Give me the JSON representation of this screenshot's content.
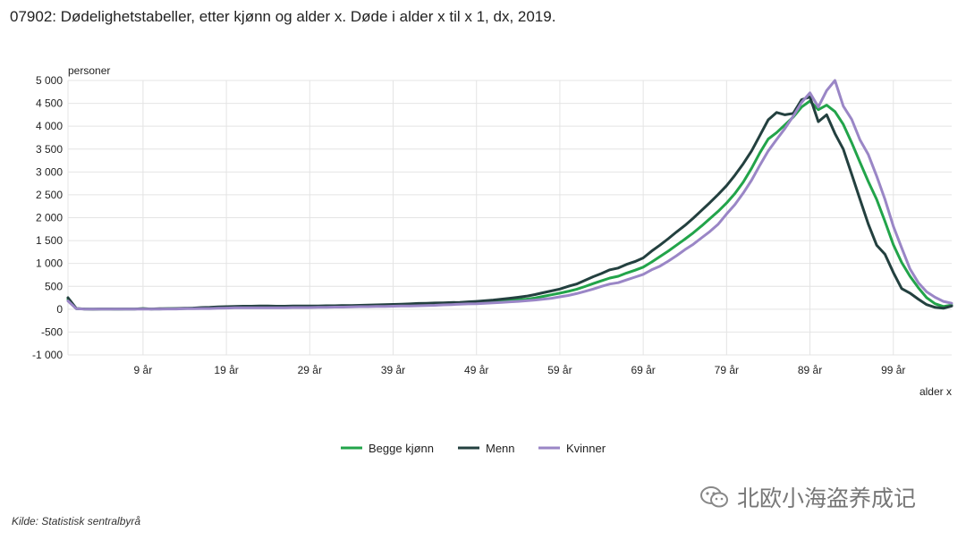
{
  "title": "07902: Dødelighetstabeller, etter kjønn og alder x. Døde i alder x til x 1, dx, 2019.",
  "source": "Kilde:  Statistisk sentralbyrå",
  "watermark": "北欧小海盗养成记",
  "watermark_icon": "wechat-icon",
  "chart_data": {
    "type": "line",
    "title": "07902: Dødelighetstabeller, etter kjønn og alder x. Døde i alder x til x 1, dx, 2019.",
    "xlabel": "alder x",
    "ylabel": "personer",
    "xlim": [
      0,
      106
    ],
    "ylim": [
      -1000,
      5000
    ],
    "y_ticks": [
      -1000,
      -500,
      0,
      500,
      1000,
      1500,
      2000,
      2500,
      3000,
      3500,
      4000,
      4500,
      5000
    ],
    "y_tick_labels": [
      "-1 000",
      "-500",
      "0",
      "500",
      "1 000",
      "1 500",
      "2 000",
      "2 500",
      "3 000",
      "3 500",
      "4 000",
      "4 500",
      "5 000"
    ],
    "x_ticks": [
      9,
      19,
      29,
      39,
      49,
      59,
      69,
      79,
      89,
      99
    ],
    "x_tick_labels": [
      "9 år",
      "19 år",
      "29 år",
      "39 år",
      "49 år",
      "59 år",
      "69 år",
      "79 år",
      "89 år",
      "99 år"
    ],
    "grid": true,
    "legend_position": "bottom-center",
    "x": [
      0,
      1,
      2,
      3,
      4,
      5,
      6,
      7,
      8,
      9,
      10,
      11,
      12,
      13,
      14,
      15,
      16,
      17,
      18,
      19,
      20,
      21,
      22,
      23,
      24,
      25,
      26,
      27,
      28,
      29,
      30,
      31,
      32,
      33,
      34,
      35,
      36,
      37,
      38,
      39,
      40,
      41,
      42,
      43,
      44,
      45,
      46,
      47,
      48,
      49,
      50,
      51,
      52,
      53,
      54,
      55,
      56,
      57,
      58,
      59,
      60,
      61,
      62,
      63,
      64,
      65,
      66,
      67,
      68,
      69,
      70,
      71,
      72,
      73,
      74,
      75,
      76,
      77,
      78,
      79,
      80,
      81,
      82,
      83,
      84,
      85,
      86,
      87,
      88,
      89,
      90,
      91,
      92,
      93,
      94,
      95,
      96,
      97,
      98,
      99,
      100,
      101,
      102,
      103,
      104,
      105,
      106
    ],
    "series": [
      {
        "name": "Begge kjønn",
        "color": "#22a44a",
        "values": [
          215,
          10,
          5,
          0,
          5,
          5,
          0,
          5,
          5,
          10,
          5,
          5,
          10,
          10,
          15,
          20,
          25,
          30,
          35,
          40,
          45,
          45,
          50,
          50,
          50,
          50,
          50,
          50,
          50,
          55,
          55,
          55,
          60,
          60,
          65,
          70,
          70,
          75,
          75,
          80,
          85,
          90,
          100,
          105,
          110,
          115,
          120,
          125,
          130,
          140,
          150,
          160,
          175,
          190,
          205,
          220,
          245,
          280,
          315,
          350,
          390,
          435,
          495,
          560,
          620,
          680,
          720,
          790,
          850,
          920,
          1030,
          1150,
          1270,
          1400,
          1530,
          1670,
          1820,
          1980,
          2140,
          2320,
          2530,
          2780,
          3080,
          3420,
          3720,
          3860,
          4030,
          4200,
          4420,
          4550,
          4360,
          4460,
          4320,
          4040,
          3640,
          3210,
          2790,
          2400,
          1920,
          1410,
          1020,
          720,
          470,
          250,
          120,
          60,
          90
        ]
      },
      {
        "name": "Menn",
        "color": "#23403f",
        "values": [
          250,
          15,
          5,
          0,
          5,
          5,
          5,
          5,
          5,
          10,
          5,
          10,
          10,
          15,
          20,
          25,
          35,
          40,
          50,
          55,
          60,
          65,
          65,
          70,
          70,
          65,
          65,
          70,
          70,
          70,
          70,
          75,
          75,
          80,
          80,
          85,
          90,
          95,
          100,
          105,
          110,
          115,
          125,
          130,
          135,
          140,
          145,
          150,
          160,
          170,
          185,
          200,
          220,
          240,
          260,
          285,
          320,
          360,
          400,
          440,
          500,
          550,
          630,
          710,
          780,
          860,
          900,
          980,
          1040,
          1120,
          1270,
          1400,
          1540,
          1690,
          1830,
          1990,
          2160,
          2330,
          2510,
          2700,
          2930,
          3180,
          3460,
          3800,
          4140,
          4300,
          4250,
          4280,
          4580,
          4640,
          4100,
          4250,
          3840,
          3500,
          2950,
          2400,
          1860,
          1400,
          1200,
          800,
          450,
          350,
          220,
          100,
          40,
          20,
          70
        ]
      },
      {
        "name": "Kvinner",
        "color": "#9a86c6",
        "values": [
          180,
          10,
          0,
          0,
          0,
          0,
          0,
          0,
          0,
          0,
          0,
          0,
          5,
          5,
          10,
          10,
          15,
          15,
          20,
          25,
          30,
          30,
          30,
          30,
          30,
          30,
          30,
          35,
          35,
          35,
          40,
          40,
          45,
          45,
          50,
          55,
          55,
          60,
          60,
          65,
          70,
          70,
          75,
          80,
          85,
          95,
          100,
          110,
          115,
          120,
          130,
          140,
          150,
          160,
          170,
          185,
          200,
          220,
          240,
          270,
          300,
          340,
          390,
          440,
          500,
          550,
          580,
          640,
          700,
          760,
          860,
          940,
          1050,
          1170,
          1300,
          1420,
          1560,
          1700,
          1860,
          2080,
          2290,
          2540,
          2820,
          3150,
          3460,
          3710,
          3950,
          4220,
          4520,
          4730,
          4420,
          4780,
          5000,
          4440,
          4150,
          3700,
          3380,
          2910,
          2400,
          1810,
          1340,
          880,
          580,
          380,
          260,
          170,
          130
        ]
      }
    ]
  }
}
